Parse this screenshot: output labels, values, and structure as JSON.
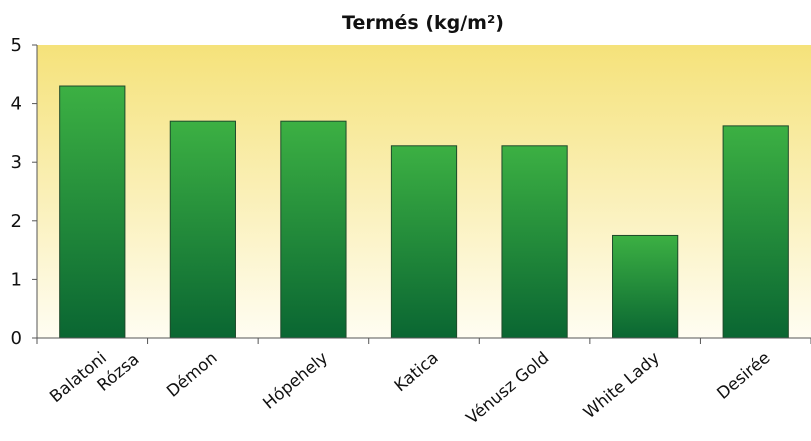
{
  "chart_data": {
    "type": "bar",
    "title": "Termés (kg/m²)",
    "xlabel": "",
    "ylabel": "",
    "categories": [
      [
        "Balatoni",
        "Rózsa"
      ],
      [
        "Démon"
      ],
      [
        "Hópehely"
      ],
      [
        "Katica"
      ],
      [
        "Vénusz Gold"
      ],
      [
        "White Lady"
      ],
      [
        "Desirée"
      ]
    ],
    "values": [
      4.3,
      3.7,
      3.7,
      3.28,
      3.28,
      1.75,
      3.62
    ],
    "ylim": [
      0,
      5
    ],
    "yticks": [
      0,
      1,
      2,
      3,
      4,
      5
    ],
    "grid": false,
    "legend": "none",
    "colors": {
      "bar_top": "#3cb043",
      "bar_bottom": "#0a6632",
      "bar_stroke": "#1e4a2a",
      "bg_top": "#f5e27a",
      "bg_bottom": "#fffdf2"
    }
  }
}
